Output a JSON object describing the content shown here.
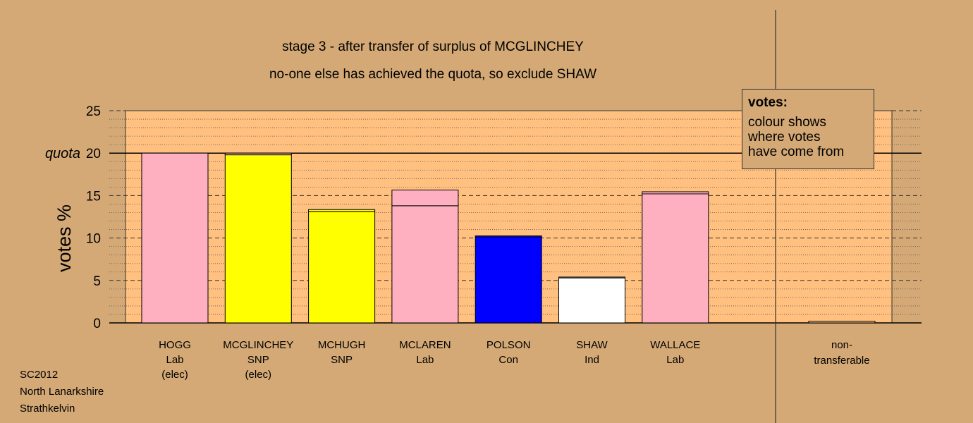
{
  "chart_data": {
    "type": "bar",
    "title": "stage 3 - after transfer of surplus of MCGLINCHEY",
    "subtitle": "no-one else has achieved the quota, so exclude SHAW",
    "ylabel": "votes %",
    "ylim": [
      0,
      25
    ],
    "yticks": [
      0,
      5,
      10,
      15,
      20,
      25
    ],
    "quota": 20,
    "quota_label": "quota",
    "categories": [
      {
        "name": "HOGG",
        "party": "Lab",
        "note": "(elec)"
      },
      {
        "name": "MCGLINCHEY",
        "party": "SNP",
        "note": "(elec)"
      },
      {
        "name": "MCHUGH",
        "party": "SNP",
        "note": ""
      },
      {
        "name": "MCLAREN",
        "party": "Lab",
        "note": ""
      },
      {
        "name": "POLSON",
        "party": "Con",
        "note": ""
      },
      {
        "name": "SHAW",
        "party": "Ind",
        "note": ""
      },
      {
        "name": "WALLACE",
        "party": "Lab",
        "note": ""
      }
    ],
    "bars": [
      {
        "color": "#ffb0c0",
        "segments": [
          {
            "value": 20.0,
            "color": "#ffb0c0"
          }
        ]
      },
      {
        "color": "#ffff00",
        "segments": [
          {
            "value": 19.8,
            "color": "#ffff00"
          },
          {
            "value": 0.2,
            "color": "#ffb0c0"
          }
        ]
      },
      {
        "color": "#ffff00",
        "segments": [
          {
            "value": 13.1,
            "color": "#ffff00"
          },
          {
            "value": 0.25,
            "color": "#ffff00"
          }
        ]
      },
      {
        "color": "#ffb0c0",
        "segments": [
          {
            "value": 13.8,
            "color": "#ffb0c0"
          },
          {
            "value": 1.85,
            "color": "#ffb0c0"
          }
        ]
      },
      {
        "color": "#0000ff",
        "segments": [
          {
            "value": 10.1,
            "color": "#0000ff"
          },
          {
            "value": 0.15,
            "color": "#0000ff"
          }
        ]
      },
      {
        "color": "#ffffff",
        "segments": [
          {
            "value": 5.3,
            "color": "#ffffff"
          },
          {
            "value": 0.1,
            "color": "#ffffff"
          }
        ]
      },
      {
        "color": "#ffb0c0",
        "segments": [
          {
            "value": 15.2,
            "color": "#ffb0c0"
          },
          {
            "value": 0.25,
            "color": "#ffb0c0"
          }
        ]
      }
    ],
    "nontransferable": {
      "label_line1": "non-",
      "label_line2": "transferable",
      "value": 0.2
    },
    "legend": {
      "title": "votes:",
      "body": "colour shows\nwhere votes\nhave come from"
    },
    "grid": true,
    "background": "#d4a976",
    "plot_background": "#ffc080"
  },
  "footer": {
    "line1": "SC2012",
    "line2": "North Lanarkshire",
    "line3": "Strathkelvin"
  }
}
